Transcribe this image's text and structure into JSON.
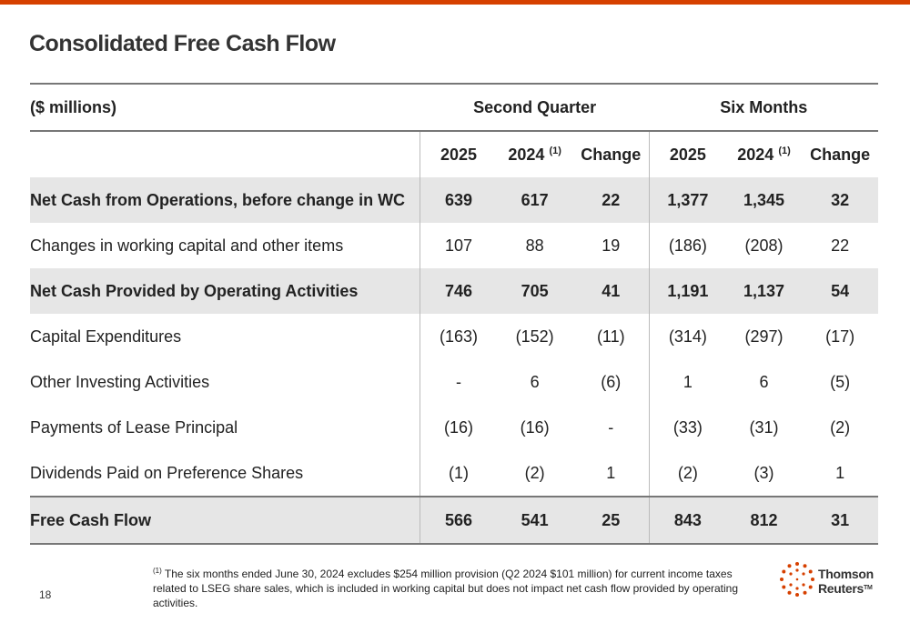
{
  "title": "Consolidated Free Cash Flow",
  "table": {
    "unit_label": "($ millions)",
    "groups": [
      "Second Quarter",
      "Six Months"
    ],
    "columns": [
      "2025",
      "2024",
      "Change",
      "2025",
      "2024",
      "Change"
    ],
    "footnote_ref": "(1)",
    "rows": [
      {
        "label": "Net Cash from Operations, before change in WC",
        "values": [
          "639",
          "617",
          "22",
          "1,377",
          "1,345",
          "32"
        ]
      },
      {
        "label": "Changes in working capital and other items",
        "values": [
          "107",
          "88",
          "19",
          "(186)",
          "(208)",
          "22"
        ]
      },
      {
        "label": "Net Cash Provided by Operating Activities",
        "values": [
          "746",
          "705",
          "41",
          "1,191",
          "1,137",
          "54"
        ]
      },
      {
        "label": "Capital Expenditures",
        "values": [
          "(163)",
          "(152)",
          "(11)",
          "(314)",
          "(297)",
          "(17)"
        ]
      },
      {
        "label": "Other Investing Activities",
        "values": [
          "-",
          "6",
          "(6)",
          "1",
          "6",
          "(5)"
        ]
      },
      {
        "label": "Payments of Lease Principal",
        "values": [
          "(16)",
          "(16)",
          "-",
          "(33)",
          "(31)",
          "(2)"
        ]
      },
      {
        "label": "Dividends Paid on Preference Shares",
        "values": [
          "(1)",
          "(2)",
          "1",
          "(2)",
          "(3)",
          "1"
        ]
      },
      {
        "label": "Free Cash Flow",
        "values": [
          "566",
          "541",
          "25",
          "843",
          "812",
          "31"
        ]
      }
    ]
  },
  "footnote": {
    "marker": "(1)",
    "text": "The six months ended June 30, 2024 excludes $254 million provision (Q2 2024 $101 million) for current income taxes related to LSEG share sales, which is included in working capital but does not impact net cash flow provided by operating activities."
  },
  "page_number": "18",
  "logo": {
    "line1": "Thomson",
    "line2": "Reuters",
    "tm": "TM",
    "icon": "thomson-reuters-dots-logo"
  },
  "colors": {
    "accent": "#d64000",
    "shade": "#e6e6e6",
    "rule": "#777777"
  }
}
